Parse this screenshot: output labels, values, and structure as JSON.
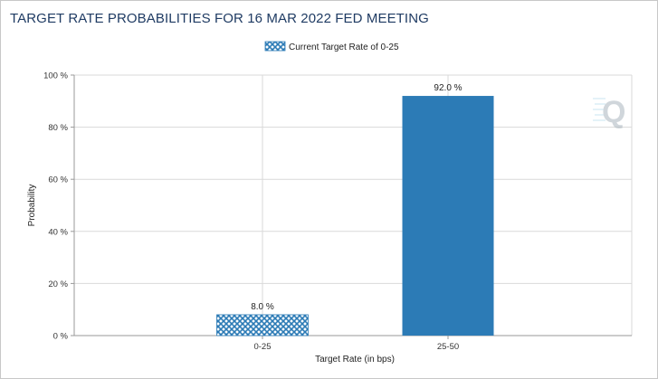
{
  "header": {
    "title": "TARGET RATE PROBABILITIES FOR 16 MAR 2022 FED MEETING"
  },
  "colors": {
    "title": "#1f3b63",
    "bar": "#2c7bb6",
    "hatch_fill": "#2c7bb6",
    "hatch_bg": "#ffffff",
    "grid": "#d9d9d9",
    "watermark": "#b8c4cc"
  },
  "watermark": {
    "icon": "quikstrike-q-logo-icon",
    "letter": "Q"
  },
  "chart_data": {
    "type": "bar",
    "title": "TARGET RATE PROBABILITIES FOR 16 MAR 2022 FED MEETING",
    "xlabel": "Target Rate (in bps)",
    "ylabel": "Probability",
    "categories": [
      "0-25",
      "25-50"
    ],
    "values": [
      8.0,
      92.0
    ],
    "data_labels": [
      "8.0 %",
      "92.0 %"
    ],
    "hatched": [
      true,
      false
    ],
    "ylim": [
      0,
      100
    ],
    "yticks": [
      0,
      20,
      40,
      60,
      80,
      100
    ],
    "ytick_labels": [
      "0 %",
      "20 %",
      "40 %",
      "60 %",
      "80 %",
      "100 %"
    ],
    "legend": {
      "position": "top-center",
      "entries": [
        {
          "label": "Current Target Rate of 0-25",
          "pattern": "hatched"
        }
      ]
    },
    "grid": true
  }
}
